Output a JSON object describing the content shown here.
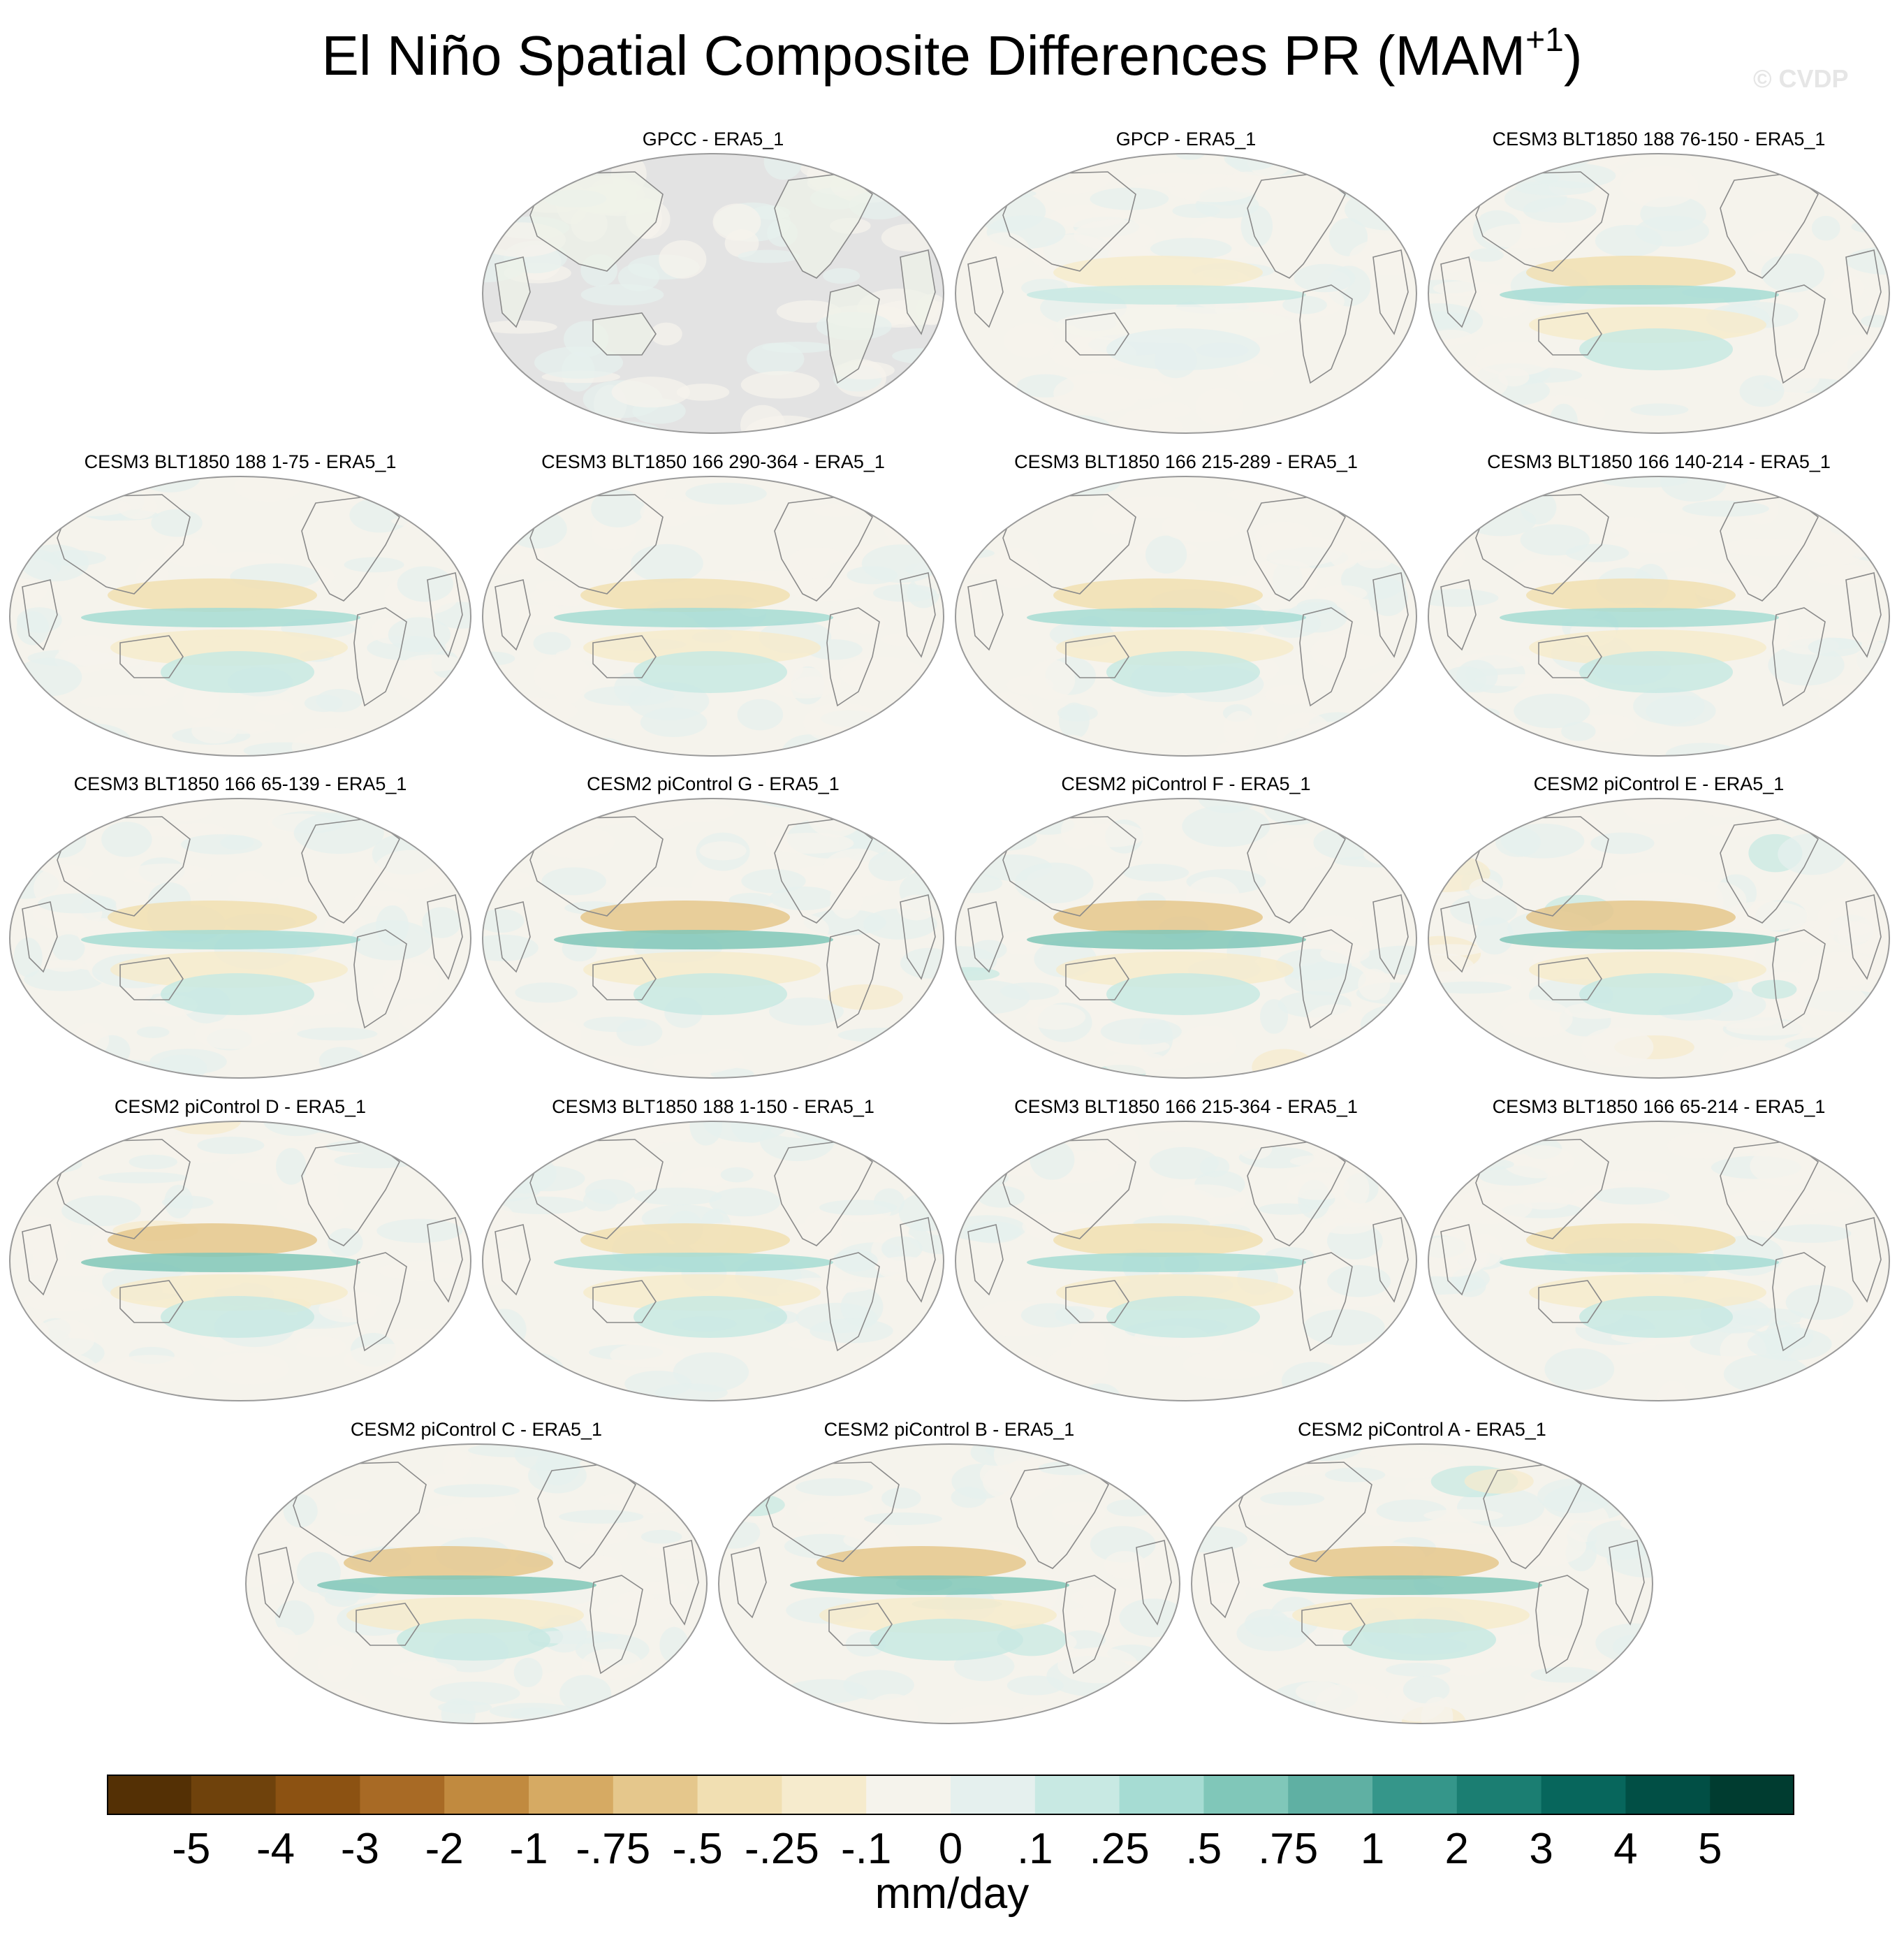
{
  "title": {
    "main": "El Niño Spatial Composite Differences PR (MAM",
    "superscript": "+1",
    "close": ")"
  },
  "watermark": "© CVDP",
  "panels": [
    {
      "title": "GPCC - ERA5_1",
      "land_only": true,
      "strength": 0.35
    },
    {
      "title": "GPCP - ERA5_1",
      "land_only": false,
      "strength": 0.45
    },
    {
      "title": "CESM3 BLT1850 188 76-150 - ERA5_1",
      "land_only": false,
      "strength": 0.8
    },
    {
      "title": "CESM3 BLT1850 188 1-75 - ERA5_1",
      "land_only": false,
      "strength": 0.8
    },
    {
      "title": "CESM3 BLT1850 166 290-364 - ERA5_1",
      "land_only": false,
      "strength": 0.75
    },
    {
      "title": "CESM3 BLT1850 166 215-289 - ERA5_1",
      "land_only": false,
      "strength": 0.75
    },
    {
      "title": "CESM3 BLT1850 166 140-214 - ERA5_1",
      "land_only": false,
      "strength": 0.75
    },
    {
      "title": "CESM3 BLT1850 166 65-139 - ERA5_1",
      "land_only": false,
      "strength": 0.75
    },
    {
      "title": "CESM2 piControl G - ERA5_1",
      "land_only": false,
      "strength": 0.95
    },
    {
      "title": "CESM2 piControl F - ERA5_1",
      "land_only": false,
      "strength": 0.95
    },
    {
      "title": "CESM2 piControl E - ERA5_1",
      "land_only": false,
      "strength": 0.95
    },
    {
      "title": "CESM2 piControl D - ERA5_1",
      "land_only": false,
      "strength": 0.95
    },
    {
      "title": "CESM3 BLT1850 188 1-150 - ERA5_1",
      "land_only": false,
      "strength": 0.75
    },
    {
      "title": "CESM3 BLT1850 166 215-364 - ERA5_1",
      "land_only": false,
      "strength": 0.75
    },
    {
      "title": "CESM3 BLT1850 166 65-214 - ERA5_1",
      "land_only": false,
      "strength": 0.75
    },
    {
      "title": "CESM2 piControl C - ERA5_1",
      "land_only": false,
      "strength": 0.95
    },
    {
      "title": "CESM2 piControl B - ERA5_1",
      "land_only": false,
      "strength": 0.95
    },
    {
      "title": "CESM2 piControl A - ERA5_1",
      "land_only": false,
      "strength": 0.95
    }
  ],
  "colorbar": {
    "colors": [
      "#543005",
      "#6f420c",
      "#8c5212",
      "#a86a25",
      "#c18a3f",
      "#d6aa63",
      "#e5c78c",
      "#f1dfb2",
      "#f6ebcd",
      "#f5f3ec",
      "#e5f0ee",
      "#c8e9e3",
      "#a6dcd3",
      "#80c7b9",
      "#5fb0a3",
      "#35968a",
      "#1b7e72",
      "#07665c",
      "#014f45",
      "#003c30"
    ],
    "tick_labels": [
      "-5",
      "-4",
      "-3",
      "-2",
      "-1",
      "-.75",
      "-.5",
      "-.25",
      "-.1",
      "0",
      ".1",
      ".25",
      ".5",
      ".75",
      "1",
      "2",
      "3",
      "4",
      "5"
    ],
    "units": "mm/day",
    "land_mask_color": "#e3e3e3",
    "coastline_color": "#8a8a8a"
  }
}
